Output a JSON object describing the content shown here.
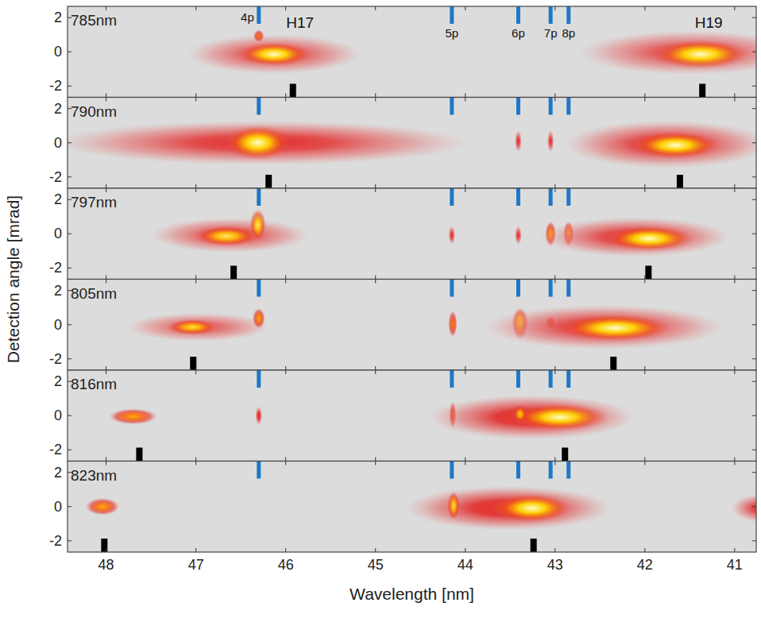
{
  "chart_data": {
    "type": "spectrogram",
    "x_label": "Wavelength [nm]",
    "y_label": "Detection angle [mrad]",
    "xlim": [
      48.43,
      40.76
    ],
    "xticks": [
      48,
      47,
      46,
      45,
      44,
      43,
      42,
      41
    ],
    "ylim": [
      -2.66,
      2.66
    ],
    "yticks": [
      -2,
      0,
      2
    ],
    "lines": [
      {
        "label": "4p",
        "x": 46.3
      },
      {
        "label": "5p",
        "x": 44.15
      },
      {
        "label": "6p",
        "x": 43.41
      },
      {
        "label": "7p",
        "x": 43.05
      },
      {
        "label": "8p",
        "x": 42.85
      }
    ],
    "panels": [
      {
        "title": "785nm",
        "harmonics": [
          45.92,
          41.36
        ],
        "annotations": [
          {
            "text": "H17",
            "x": 45.84,
            "y": 1.75
          },
          {
            "text": "H19",
            "x": 41.29,
            "y": 1.75
          }
        ],
        "spots": [
          {
            "x": 46.13,
            "y": -0.14,
            "width": 0.97,
            "height": 1.16,
            "intensity": 0.25
          },
          {
            "x": 46.13,
            "y": -0.14,
            "width": 0.4,
            "height": 0.7,
            "intensity": 1
          },
          {
            "x": 46.3,
            "y": 0.93,
            "width": 0.06,
            "height": 0.37,
            "intensity": 0.6
          },
          {
            "x": 41.49,
            "y": -0.05,
            "width": 1.24,
            "height": 1.3,
            "intensity": 0.25
          },
          {
            "x": 41.38,
            "y": -0.14,
            "width": 0.53,
            "height": 0.84,
            "intensity": 1
          }
        ]
      },
      {
        "title": "790nm",
        "harmonics": [
          46.19,
          41.61
        ],
        "spots": [
          {
            "x": 46.27,
            "y": 0,
            "width": 2.3,
            "height": 1.3,
            "intensity": 0.3
          },
          {
            "x": 46.31,
            "y": 0,
            "width": 0.37,
            "height": 1.02,
            "intensity": 1
          },
          {
            "x": 43.41,
            "y": 0.09,
            "width": 0.04,
            "height": 0.65,
            "intensity": 0.3
          },
          {
            "x": 43.05,
            "y": 0.09,
            "width": 0.04,
            "height": 0.65,
            "intensity": 0.3
          },
          {
            "x": 41.75,
            "y": -0.09,
            "width": 1.15,
            "height": 1.4,
            "intensity": 0.3
          },
          {
            "x": 41.66,
            "y": -0.14,
            "width": 0.49,
            "height": 0.79,
            "intensity": 1
          }
        ]
      },
      {
        "title": "797nm",
        "harmonics": [
          46.58,
          41.96
        ],
        "spots": [
          {
            "x": 46.62,
            "y": -0.09,
            "width": 0.88,
            "height": 1.02,
            "intensity": 0.25
          },
          {
            "x": 46.66,
            "y": -0.14,
            "width": 0.35,
            "height": 0.6,
            "intensity": 0.9
          },
          {
            "x": 46.31,
            "y": 0.51,
            "width": 0.09,
            "height": 0.93,
            "intensity": 0.9
          },
          {
            "x": 44.15,
            "y": -0.09,
            "width": 0.04,
            "height": 0.56,
            "intensity": 0.3
          },
          {
            "x": 43.41,
            "y": -0.09,
            "width": 0.04,
            "height": 0.56,
            "intensity": 0.3
          },
          {
            "x": 43.05,
            "y": 0,
            "width": 0.06,
            "height": 0.74,
            "intensity": 0.7
          },
          {
            "x": 42.85,
            "y": 0,
            "width": 0.06,
            "height": 0.74,
            "intensity": 0.7
          },
          {
            "x": 42.11,
            "y": -0.19,
            "width": 1.06,
            "height": 1.16,
            "intensity": 0.3
          },
          {
            "x": 41.95,
            "y": -0.28,
            "width": 0.49,
            "height": 0.74,
            "intensity": 1
          }
        ]
      },
      {
        "title": "805nm",
        "harmonics": [
          47.03,
          42.35
        ],
        "spots": [
          {
            "x": 46.97,
            "y": -0.14,
            "width": 0.8,
            "height": 0.84,
            "intensity": 0.2
          },
          {
            "x": 47.04,
            "y": -0.14,
            "width": 0.28,
            "height": 0.47,
            "intensity": 0.85
          },
          {
            "x": 46.3,
            "y": 0.37,
            "width": 0.07,
            "height": 0.6,
            "intensity": 0.7
          },
          {
            "x": 44.14,
            "y": 0.05,
            "width": 0.05,
            "height": 0.79,
            "intensity": 0.6
          },
          {
            "x": 43.39,
            "y": 0.09,
            "width": 0.09,
            "height": 0.93,
            "intensity": 0.85
          },
          {
            "x": 43.05,
            "y": 0.14,
            "width": 0.05,
            "height": 0.37,
            "intensity": 0.5
          },
          {
            "x": 42.46,
            "y": -0.14,
            "width": 1.33,
            "height": 1.3,
            "intensity": 0.3
          },
          {
            "x": 42.33,
            "y": -0.19,
            "width": 0.62,
            "height": 0.79,
            "intensity": 1
          }
        ]
      },
      {
        "title": "816nm",
        "harmonics": [
          47.63,
          42.89
        ],
        "spots": [
          {
            "x": 47.7,
            "y": -0.05,
            "width": 0.27,
            "height": 0.47,
            "intensity": 0.7
          },
          {
            "x": 46.3,
            "y": 0,
            "width": 0.04,
            "height": 0.56,
            "intensity": 0.35
          },
          {
            "x": 44.14,
            "y": 0.05,
            "width": 0.04,
            "height": 0.79,
            "intensity": 0.5
          },
          {
            "x": 43.26,
            "y": -0.09,
            "width": 1.15,
            "height": 1.3,
            "intensity": 0.35
          },
          {
            "x": 42.95,
            "y": -0.09,
            "width": 0.53,
            "height": 0.79,
            "intensity": 1
          },
          {
            "x": 43.39,
            "y": 0.09,
            "width": 0.08,
            "height": 0.56,
            "intensity": 0.8
          }
        ]
      },
      {
        "title": "823nm",
        "harmonics": [
          48.02,
          43.24
        ],
        "spots": [
          {
            "x": 48.04,
            "y": 0,
            "width": 0.19,
            "height": 0.51,
            "intensity": 0.7
          },
          {
            "x": 43.52,
            "y": -0.09,
            "width": 1.15,
            "height": 1.3,
            "intensity": 0.35
          },
          {
            "x": 44.13,
            "y": 0.05,
            "width": 0.07,
            "height": 0.84,
            "intensity": 0.85
          },
          {
            "x": 43.26,
            "y": -0.09,
            "width": 0.44,
            "height": 0.84,
            "intensity": 1
          },
          {
            "x": 40.69,
            "y": -0.09,
            "width": 0.35,
            "height": 0.84,
            "intensity": 0.3
          }
        ]
      }
    ]
  }
}
